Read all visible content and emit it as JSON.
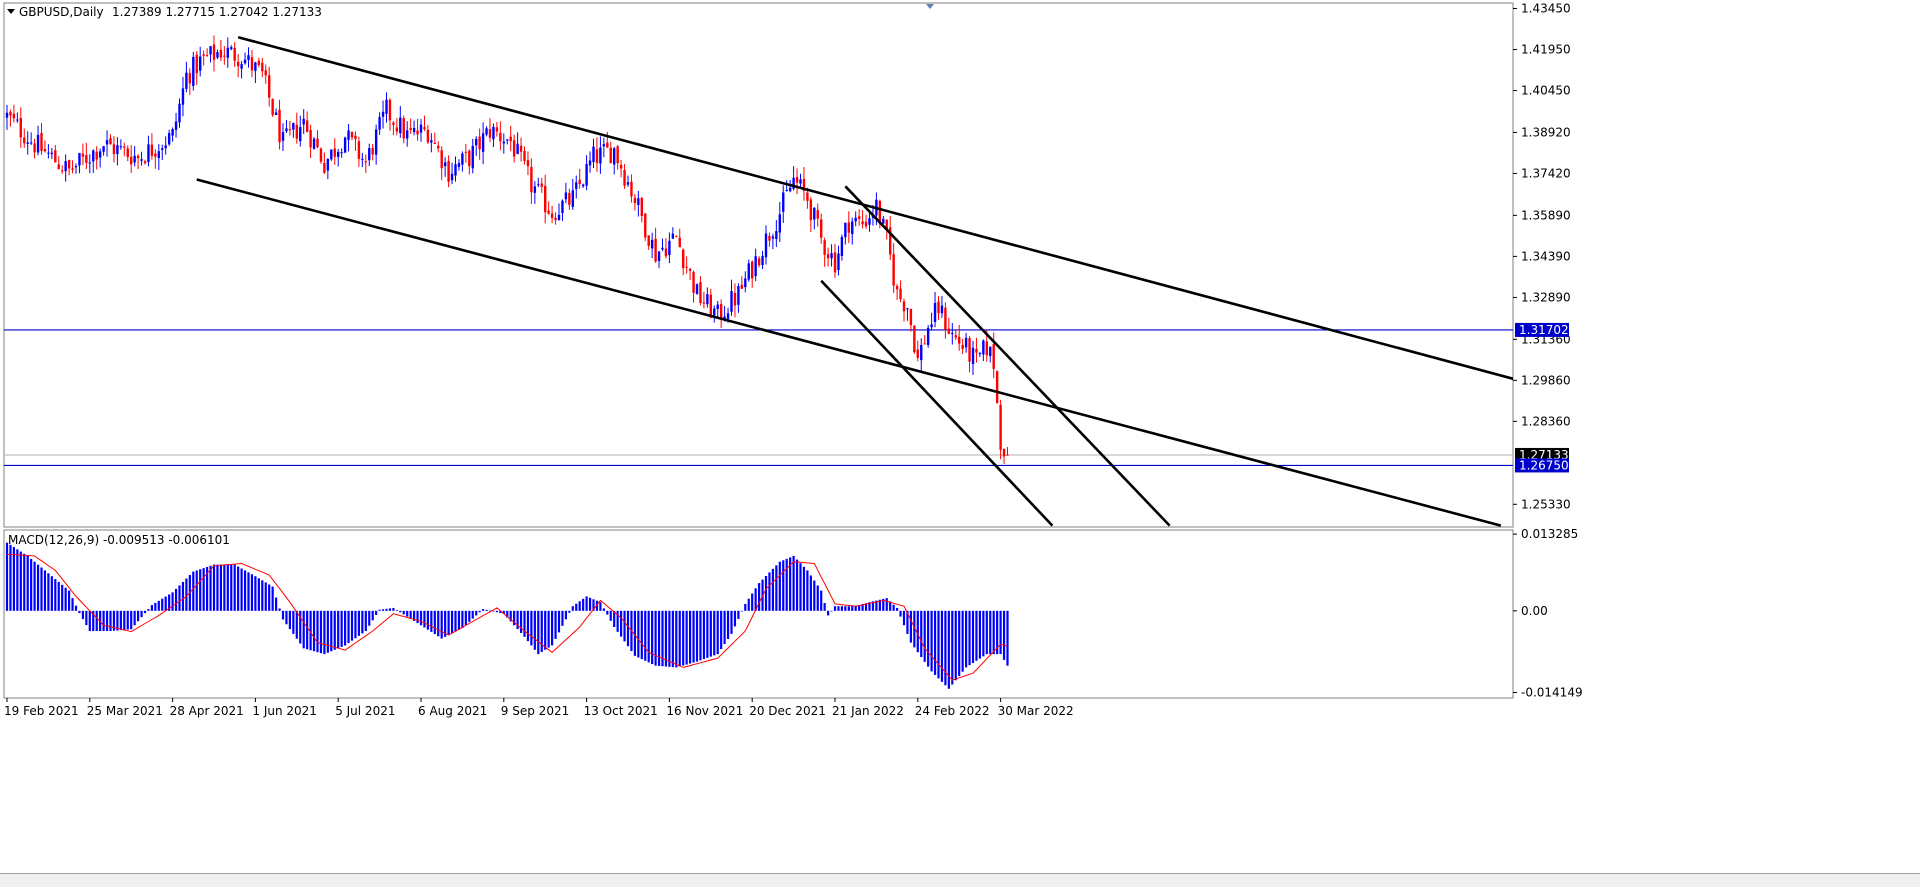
{
  "chart_data": {
    "type": "candlestick",
    "header": {
      "symbol_tf": "GBPUSD,Daily",
      "ohlc": "1.27389 1.27715 1.27042 1.27133"
    },
    "colors": {
      "bull": "#0000ff",
      "bear": "#ff0000",
      "hline": "#0000cc",
      "trend": "#000000",
      "signal": "#ff0000",
      "hist": "#0000ff"
    },
    "price_axis": {
      "ylim": [
        1.245,
        1.4365
      ],
      "ticks": [
        "1.43450",
        "1.41950",
        "1.40450",
        "1.38920",
        "1.37420",
        "1.35890",
        "1.34390",
        "1.32890",
        "1.31360",
        "1.29860",
        "1.28360",
        "1.25330"
      ],
      "labels": [
        {
          "text": "1.31702",
          "value": 1.31702,
          "style": "line"
        },
        {
          "text": "1.27133",
          "value": 1.27133,
          "style": "current"
        },
        {
          "text": "1.26750",
          "value": 1.2675,
          "style": "line"
        }
      ]
    },
    "time_axis": {
      "labels": [
        "19 Feb 2021",
        "25 Mar 2021",
        "28 Apr 2021",
        "1 Jun 2021",
        "5 Jul 2021",
        "6 Aug 2021",
        "9 Sep 2021",
        "13 Oct 2021",
        "16 Nov 2021",
        "20 Dec 2021",
        "21 Jan 2022",
        "24 Feb 2022",
        "30 Mar 2022"
      ],
      "label_bars": [
        0,
        24,
        48,
        72,
        96,
        120,
        144,
        168,
        192,
        216,
        240,
        264,
        288
      ]
    },
    "price_path": [
      [
        0,
        1.395
      ],
      [
        8,
        1.385
      ],
      [
        18,
        1.375
      ],
      [
        28,
        1.385
      ],
      [
        38,
        1.38
      ],
      [
        48,
        1.388
      ],
      [
        52,
        1.41
      ],
      [
        56,
        1.415
      ],
      [
        62,
        1.419
      ],
      [
        68,
        1.417
      ],
      [
        74,
        1.41
      ],
      [
        80,
        1.385
      ],
      [
        86,
        1.393
      ],
      [
        92,
        1.378
      ],
      [
        98,
        1.388
      ],
      [
        104,
        1.378
      ],
      [
        110,
        1.397
      ],
      [
        116,
        1.388
      ],
      [
        122,
        1.39
      ],
      [
        128,
        1.375
      ],
      [
        134,
        1.38
      ],
      [
        140,
        1.39
      ],
      [
        146,
        1.386
      ],
      [
        152,
        1.37
      ],
      [
        158,
        1.36
      ],
      [
        164,
        1.365
      ],
      [
        170,
        1.38
      ],
      [
        176,
        1.383
      ],
      [
        182,
        1.365
      ],
      [
        188,
        1.345
      ],
      [
        194,
        1.351
      ],
      [
        200,
        1.33
      ],
      [
        206,
        1.322
      ],
      [
        212,
        1.33
      ],
      [
        218,
        1.345
      ],
      [
        224,
        1.36
      ],
      [
        228,
        1.372
      ],
      [
        232,
        1.365
      ],
      [
        236,
        1.35
      ],
      [
        240,
        1.342
      ],
      [
        244,
        1.357
      ],
      [
        248,
        1.356
      ],
      [
        252,
        1.362
      ],
      [
        255,
        1.35
      ],
      [
        258,
        1.33
      ],
      [
        261,
        1.326
      ],
      [
        264,
        1.306
      ],
      [
        267,
        1.318
      ],
      [
        270,
        1.325
      ],
      [
        274,
        1.315
      ],
      [
        278,
        1.31
      ],
      [
        281,
        1.305
      ],
      [
        284,
        1.311
      ],
      [
        286,
        1.305
      ],
      [
        287,
        1.29
      ],
      [
        288,
        1.277
      ],
      [
        290,
        1.2713
      ]
    ],
    "horizontal_lines": [
      1.31702,
      1.2675
    ],
    "trendlines": [
      {
        "name": "channel-upper",
        "points": [
          [
            67,
            1.424
          ],
          [
            443,
            1.297
          ]
        ]
      },
      {
        "name": "channel-lower",
        "points": [
          [
            55,
            1.372
          ],
          [
            433,
            1.2455
          ]
        ]
      },
      {
        "name": "down-channel-upper",
        "points": [
          [
            243,
            1.3695
          ],
          [
            337,
            1.2455
          ]
        ]
      },
      {
        "name": "down-channel-lower",
        "points": [
          [
            236,
            1.335
          ],
          [
            303,
            1.2455
          ]
        ]
      }
    ],
    "macd": {
      "label": "MACD(12,26,9) -0.009513 -0.006101",
      "ylim": [
        -0.0151,
        0.014
      ],
      "ticks": [
        "0.013285",
        "0.00",
        "-0.014149"
      ],
      "hist_path": [
        [
          0,
          0.0118
        ],
        [
          6,
          0.0095
        ],
        [
          12,
          0.0065
        ],
        [
          18,
          0.0035
        ],
        [
          21,
          -0.0004
        ],
        [
          24,
          -0.0035
        ],
        [
          30,
          -0.0035
        ],
        [
          36,
          -0.0032
        ],
        [
          42,
          0.001
        ],
        [
          48,
          0.0032
        ],
        [
          54,
          0.0068
        ],
        [
          60,
          0.008
        ],
        [
          66,
          0.008
        ],
        [
          72,
          0.006
        ],
        [
          77,
          0.0042
        ],
        [
          80,
          -0.0015
        ],
        [
          86,
          -0.0065
        ],
        [
          92,
          -0.0075
        ],
        [
          98,
          -0.006
        ],
        [
          104,
          -0.0035
        ],
        [
          108,
          0.0002
        ],
        [
          112,
          0.0005
        ],
        [
          120,
          -0.0025
        ],
        [
          126,
          -0.0048
        ],
        [
          132,
          -0.003
        ],
        [
          138,
          0.0003
        ],
        [
          144,
          -0.0005
        ],
        [
          150,
          -0.0045
        ],
        [
          154,
          -0.0075
        ],
        [
          158,
          -0.006
        ],
        [
          164,
          0.0008
        ],
        [
          168,
          0.0025
        ],
        [
          172,
          0.0015
        ],
        [
          176,
          -0.0028
        ],
        [
          182,
          -0.0078
        ],
        [
          188,
          -0.0095
        ],
        [
          194,
          -0.0098
        ],
        [
          200,
          -0.0088
        ],
        [
          206,
          -0.0075
        ],
        [
          210,
          -0.004
        ],
        [
          214,
          0.0012
        ],
        [
          218,
          0.0048
        ],
        [
          224,
          0.0085
        ],
        [
          228,
          0.0095
        ],
        [
          232,
          0.007
        ],
        [
          236,
          0.0035
        ],
        [
          238,
          -0.0008
        ],
        [
          240,
          0.0008
        ],
        [
          246,
          0.0008
        ],
        [
          250,
          0.0015
        ],
        [
          255,
          0.0022
        ],
        [
          258,
          0.0005
        ],
        [
          262,
          -0.0055
        ],
        [
          268,
          -0.0105
        ],
        [
          273,
          -0.0135
        ],
        [
          278,
          -0.0098
        ],
        [
          284,
          -0.0075
        ],
        [
          288,
          -0.0075
        ],
        [
          290,
          -0.0095
        ]
      ],
      "signal_path": [
        [
          0,
          0.0098
        ],
        [
          8,
          0.0095
        ],
        [
          14,
          0.007
        ],
        [
          20,
          0.0025
        ],
        [
          28,
          -0.0025
        ],
        [
          36,
          -0.0036
        ],
        [
          44,
          -0.0008
        ],
        [
          52,
          0.0025
        ],
        [
          60,
          0.0078
        ],
        [
          68,
          0.0082
        ],
        [
          76,
          0.0062
        ],
        [
          82,
          0.0015
        ],
        [
          90,
          -0.0055
        ],
        [
          98,
          -0.0068
        ],
        [
          106,
          -0.0035
        ],
        [
          112,
          -0.0005
        ],
        [
          120,
          -0.0018
        ],
        [
          128,
          -0.0042
        ],
        [
          136,
          -0.0015
        ],
        [
          142,
          0.0005
        ],
        [
          150,
          -0.0035
        ],
        [
          158,
          -0.0072
        ],
        [
          166,
          -0.0028
        ],
        [
          172,
          0.0018
        ],
        [
          178,
          -0.0012
        ],
        [
          186,
          -0.0072
        ],
        [
          196,
          -0.0098
        ],
        [
          206,
          -0.0082
        ],
        [
          214,
          -0.0035
        ],
        [
          220,
          0.0038
        ],
        [
          228,
          0.0085
        ],
        [
          234,
          0.0082
        ],
        [
          240,
          0.0012
        ],
        [
          246,
          0.0008
        ],
        [
          254,
          0.0018
        ],
        [
          260,
          0.0008
        ],
        [
          266,
          -0.0065
        ],
        [
          274,
          -0.012
        ],
        [
          280,
          -0.0108
        ],
        [
          288,
          -0.0058
        ],
        [
          290,
          -0.0061
        ]
      ]
    }
  }
}
